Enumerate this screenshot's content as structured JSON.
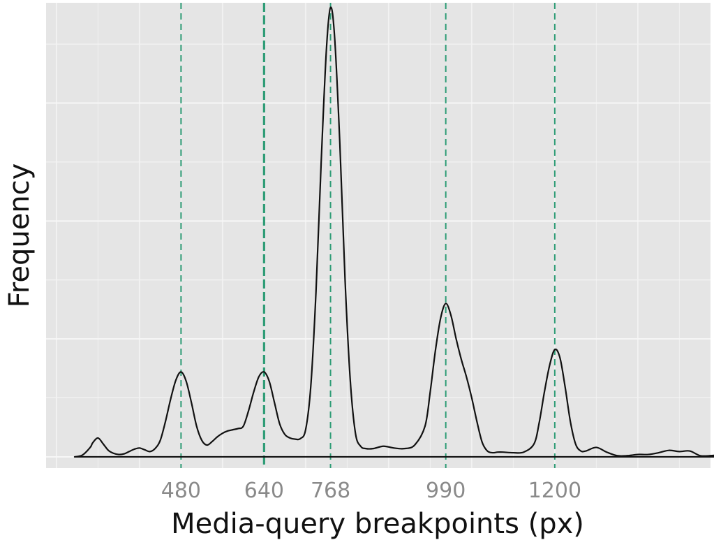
{
  "chart_data": {
    "type": "area",
    "title": "",
    "xlabel": "Media-query breakpoints (px)",
    "ylabel": "Frequency",
    "x_tick_labels": [
      {
        "value": 480,
        "label": "480"
      },
      {
        "value": 640,
        "label": "640"
      },
      {
        "value": 768,
        "label": "768"
      },
      {
        "value": 990,
        "label": "990"
      },
      {
        "value": 1200,
        "label": "1200"
      }
    ],
    "xlim": [
      220,
      1500
    ],
    "ylim": [
      -0.19,
      7.7
    ],
    "y_tick_labels": [],
    "grid": true,
    "legend": "none",
    "reference_lines": [
      {
        "x": 480,
        "color": "#2e9c76",
        "style": "dashed",
        "weight": "normal"
      },
      {
        "x": 640,
        "color": "#2e9c76",
        "style": "dashed",
        "weight": "bold"
      },
      {
        "x": 768,
        "color": "#2e9c76",
        "style": "dashed",
        "weight": "normal"
      },
      {
        "x": 990,
        "color": "#2e9c76",
        "style": "dashed",
        "weight": "normal"
      },
      {
        "x": 1200,
        "color": "#2e9c76",
        "style": "dashed",
        "weight": "normal"
      }
    ],
    "series": [
      {
        "x": [
          275,
          290,
          305,
          310,
          320,
          330,
          340,
          350,
          360,
          370,
          380,
          390,
          400,
          410,
          420,
          430,
          440,
          450,
          460,
          470,
          480,
          490,
          500,
          510,
          520,
          530,
          540,
          550,
          560,
          570,
          580,
          590,
          600,
          610,
          620,
          630,
          640,
          650,
          660,
          670,
          680,
          690,
          700,
          710,
          720,
          730,
          740,
          750,
          760,
          768,
          776,
          786,
          796,
          806,
          816,
          826,
          836,
          850,
          870,
          890,
          910,
          930,
          950,
          960,
          970,
          980,
          990,
          1000,
          1010,
          1020,
          1030,
          1040,
          1050,
          1060,
          1070,
          1080,
          1090,
          1100,
          1120,
          1140,
          1160,
          1170,
          1180,
          1190,
          1200,
          1210,
          1220,
          1230,
          1240,
          1250,
          1260,
          1280,
          1300,
          1320,
          1340,
          1360,
          1380,
          1400,
          1420,
          1440,
          1460,
          1480,
          1500,
          1525
        ],
        "y": [
          0.0,
          0.03,
          0.16,
          0.24,
          0.32,
          0.22,
          0.11,
          0.06,
          0.04,
          0.05,
          0.09,
          0.13,
          0.15,
          0.12,
          0.09,
          0.14,
          0.28,
          0.6,
          0.98,
          1.3,
          1.44,
          1.28,
          0.92,
          0.52,
          0.28,
          0.2,
          0.26,
          0.34,
          0.4,
          0.44,
          0.46,
          0.48,
          0.52,
          0.78,
          1.1,
          1.36,
          1.44,
          1.28,
          0.92,
          0.56,
          0.38,
          0.32,
          0.3,
          0.31,
          0.46,
          1.2,
          2.8,
          5.0,
          6.9,
          7.62,
          7.1,
          5.3,
          3.0,
          1.3,
          0.4,
          0.18,
          0.14,
          0.14,
          0.18,
          0.15,
          0.14,
          0.2,
          0.52,
          1.1,
          1.8,
          2.35,
          2.6,
          2.4,
          2.0,
          1.65,
          1.35,
          1.0,
          0.6,
          0.25,
          0.1,
          0.07,
          0.08,
          0.08,
          0.07,
          0.08,
          0.22,
          0.58,
          1.1,
          1.55,
          1.82,
          1.68,
          1.18,
          0.6,
          0.22,
          0.1,
          0.1,
          0.16,
          0.08,
          0.02,
          0.02,
          0.04,
          0.04,
          0.07,
          0.11,
          0.09,
          0.1,
          0.02,
          0.02,
          0.04
        ]
      }
    ]
  }
}
